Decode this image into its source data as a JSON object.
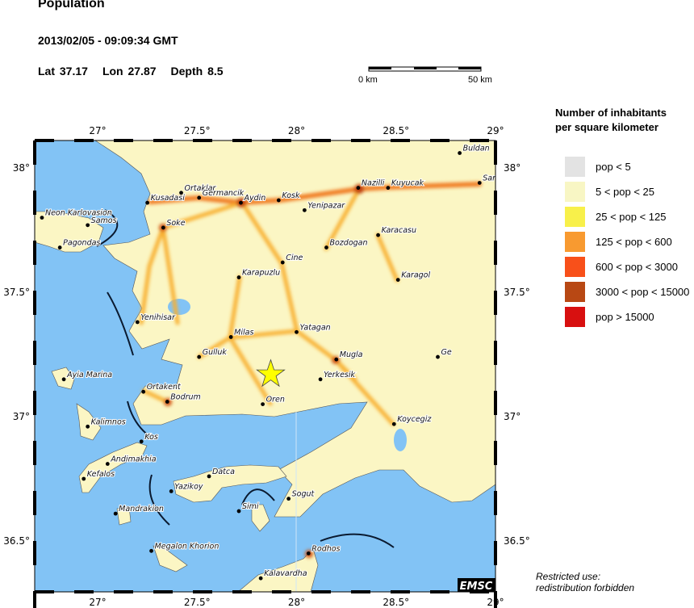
{
  "header": {
    "title": "Population",
    "datetime": "2013/02/05 - 09:09:34 GMT",
    "lat_label": "Lat 37.17",
    "lon_label": "Lon  27.87",
    "depth_label": "Depth  8.5"
  },
  "scale": {
    "start_label": "0 km",
    "end_label": "50 km"
  },
  "map": {
    "lon_range": [
      26.68,
      29.0
    ],
    "lat_range": [
      36.3,
      38.11
    ],
    "lon_ticks": [
      "27°",
      "27.5°",
      "28°",
      "28.5°",
      "29°"
    ],
    "lat_ticks": [
      "38°",
      "37.5°",
      "37°",
      "36.5°"
    ],
    "sea_color": "#82c3f5",
    "land_color": "#fbf6c4",
    "epicenter": {
      "lat": 37.17,
      "lon": 27.87,
      "icon": "star-icon",
      "color": "#ffff00"
    },
    "cities": [
      {
        "name": "Buldan",
        "lon": 28.82,
        "lat": 38.06
      },
      {
        "name": "Sar",
        "lon": 28.92,
        "lat": 37.94
      },
      {
        "name": "Nazilli",
        "lon": 28.31,
        "lat": 37.92
      },
      {
        "name": "Kuyucak",
        "lon": 28.46,
        "lat": 37.92
      },
      {
        "name": "Ortaklar",
        "lon": 27.42,
        "lat": 37.9
      },
      {
        "name": "Germancik",
        "lon": 27.51,
        "lat": 37.88
      },
      {
        "name": "Aydin",
        "lon": 27.72,
        "lat": 37.86
      },
      {
        "name": "Kosk",
        "lon": 27.91,
        "lat": 37.87
      },
      {
        "name": "Kusadasi",
        "lon": 27.25,
        "lat": 37.86
      },
      {
        "name": "Yenipazar",
        "lon": 28.04,
        "lat": 37.83
      },
      {
        "name": "Neon Karlovasion",
        "lon": 26.72,
        "lat": 37.8
      },
      {
        "name": "Samos",
        "lon": 26.95,
        "lat": 37.77
      },
      {
        "name": "Soke",
        "lon": 27.33,
        "lat": 37.76
      },
      {
        "name": "Pagondas",
        "lon": 26.81,
        "lat": 37.68
      },
      {
        "name": "Karacasu",
        "lon": 28.41,
        "lat": 37.73
      },
      {
        "name": "Bozdogan",
        "lon": 28.15,
        "lat": 37.68
      },
      {
        "name": "Cine",
        "lon": 27.93,
        "lat": 37.62
      },
      {
        "name": "Karapuzlu",
        "lon": 27.71,
        "lat": 37.56
      },
      {
        "name": "Karagol",
        "lon": 28.51,
        "lat": 37.55
      },
      {
        "name": "Yenihisar",
        "lon": 27.2,
        "lat": 37.38
      },
      {
        "name": "Yatagan",
        "lon": 28.0,
        "lat": 37.34
      },
      {
        "name": "Milas",
        "lon": 27.67,
        "lat": 37.32
      },
      {
        "name": "Gulluk",
        "lon": 27.51,
        "lat": 37.24
      },
      {
        "name": "Mugla",
        "lon": 28.2,
        "lat": 37.23
      },
      {
        "name": "Ge",
        "lon": 28.71,
        "lat": 37.24
      },
      {
        "name": "Ayia Marina",
        "lon": 26.83,
        "lat": 37.15
      },
      {
        "name": "Yerkesik",
        "lon": 28.12,
        "lat": 37.15
      },
      {
        "name": "Ortakent",
        "lon": 27.23,
        "lat": 37.1
      },
      {
        "name": "Bodrum",
        "lon": 27.35,
        "lat": 37.06
      },
      {
        "name": "Oren",
        "lon": 27.83,
        "lat": 37.05
      },
      {
        "name": "Koycegiz",
        "lon": 28.49,
        "lat": 36.97
      },
      {
        "name": "Kalimnos",
        "lon": 26.95,
        "lat": 36.96
      },
      {
        "name": "Kos",
        "lon": 27.22,
        "lat": 36.9
      },
      {
        "name": "Andimakhia",
        "lon": 27.05,
        "lat": 36.81
      },
      {
        "name": "Kefalos",
        "lon": 26.93,
        "lat": 36.75
      },
      {
        "name": "Datca",
        "lon": 27.56,
        "lat": 36.76
      },
      {
        "name": "Yazikoy",
        "lon": 27.37,
        "lat": 36.7
      },
      {
        "name": "Simi",
        "lon": 27.71,
        "lat": 36.62
      },
      {
        "name": "Sogut",
        "lon": 27.96,
        "lat": 36.67
      },
      {
        "name": "Mandrakion",
        "lon": 27.09,
        "lat": 36.61
      },
      {
        "name": "Megalon Khorion",
        "lon": 27.27,
        "lat": 36.46
      },
      {
        "name": "Rodhos",
        "lon": 28.06,
        "lat": 36.45
      },
      {
        "name": "Kalavardha",
        "lon": 27.82,
        "lat": 36.35
      }
    ],
    "logo": "EMSC"
  },
  "legend": {
    "title_line1": "Number of inhabitants",
    "title_line2": "per square kilometer",
    "items": [
      {
        "label": "pop < 5",
        "color": "#e3e3e3"
      },
      {
        "label": "5 < pop < 25",
        "color": "#f8f6c4"
      },
      {
        "label": "25 < pop < 125",
        "color": "#f8f04a"
      },
      {
        "label": "125 < pop < 600",
        "color": "#f89a30"
      },
      {
        "label": "600 < pop < 3000",
        "color": "#f8501a"
      },
      {
        "label": "3000 < pop < 15000",
        "color": "#b84814"
      },
      {
        "label": "pop > 15000",
        "color": "#d81010"
      }
    ]
  },
  "footer": {
    "restricted_line1": "Restricted use:",
    "restricted_line2": "redistribution forbidden"
  }
}
